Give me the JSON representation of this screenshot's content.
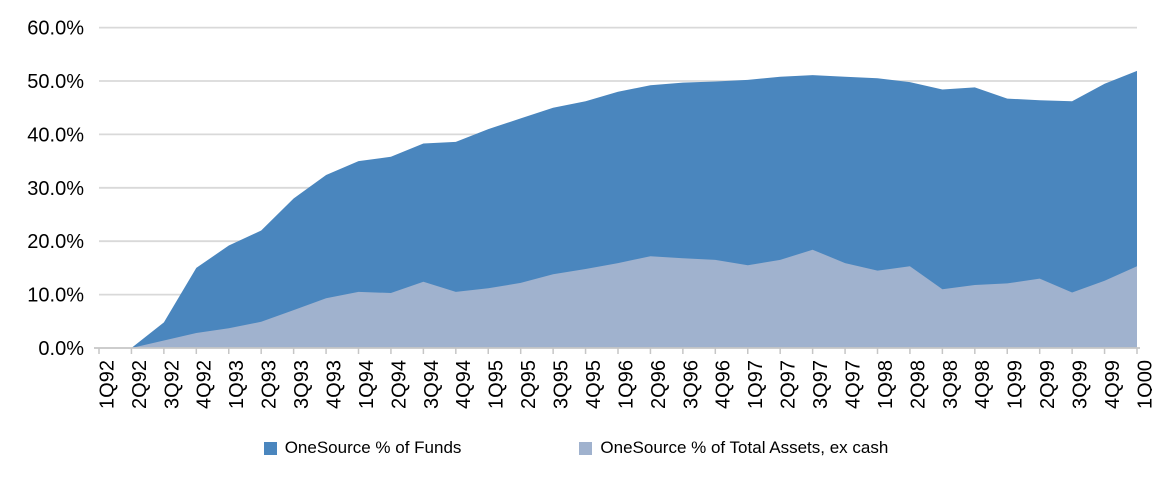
{
  "chart_data": {
    "type": "area",
    "stacked": false,
    "title": "",
    "xlabel": "",
    "ylabel": "",
    "grid": true,
    "legend_position": "bottom",
    "ylim": [
      0,
      60
    ],
    "ytick_step": 10,
    "ytick_labels": [
      "0.0%",
      "10.0%",
      "20.0%",
      "30.0%",
      "40.0%",
      "50.0%",
      "60.0%"
    ],
    "categories": [
      "1Q92",
      "2Q92",
      "3Q92",
      "4Q92",
      "1Q93",
      "2Q93",
      "3Q93",
      "4Q93",
      "1Q94",
      "2Q94",
      "3Q94",
      "4Q94",
      "1Q95",
      "2Q95",
      "3Q95",
      "4Q95",
      "1Q96",
      "2Q96",
      "3Q96",
      "4Q96",
      "1Q97",
      "2Q97",
      "3Q97",
      "4Q97",
      "1Q98",
      "2Q98",
      "3Q98",
      "4Q98",
      "1Q99",
      "2Q99",
      "3Q99",
      "4Q99",
      "1Q00"
    ],
    "series": [
      {
        "name": "OneSource % of Funds",
        "color": "#4a86be",
        "values": [
          0,
          0,
          4.8,
          15.0,
          19.2,
          22.0,
          28.0,
          32.4,
          35.0,
          35.8,
          38.3,
          38.6,
          41.0,
          43.0,
          45.0,
          46.2,
          48.0,
          49.2,
          49.7,
          49.9,
          50.2,
          50.8,
          51.1,
          50.8,
          50.5,
          49.8,
          48.4,
          48.8,
          46.7,
          46.4,
          46.2,
          49.5,
          51.9
        ]
      },
      {
        "name": "OneSource % of Total Assets, ex cash",
        "color": "#a0b2ce",
        "values": [
          0,
          0,
          1.4,
          2.8,
          3.7,
          4.9,
          7.1,
          9.3,
          10.5,
          10.3,
          12.4,
          10.5,
          11.2,
          12.2,
          13.8,
          14.8,
          15.9,
          17.2,
          16.8,
          16.5,
          15.5,
          16.5,
          18.4,
          15.9,
          14.5,
          15.3,
          11.0,
          11.8,
          12.1,
          13.0,
          10.4,
          12.6,
          15.3
        ]
      }
    ]
  },
  "colors": {
    "gridline": "#d9d9d9",
    "axis": "#c6c6c6",
    "tick": "#c6c6c6",
    "label_text": "#000000",
    "background": "#ffffff"
  }
}
